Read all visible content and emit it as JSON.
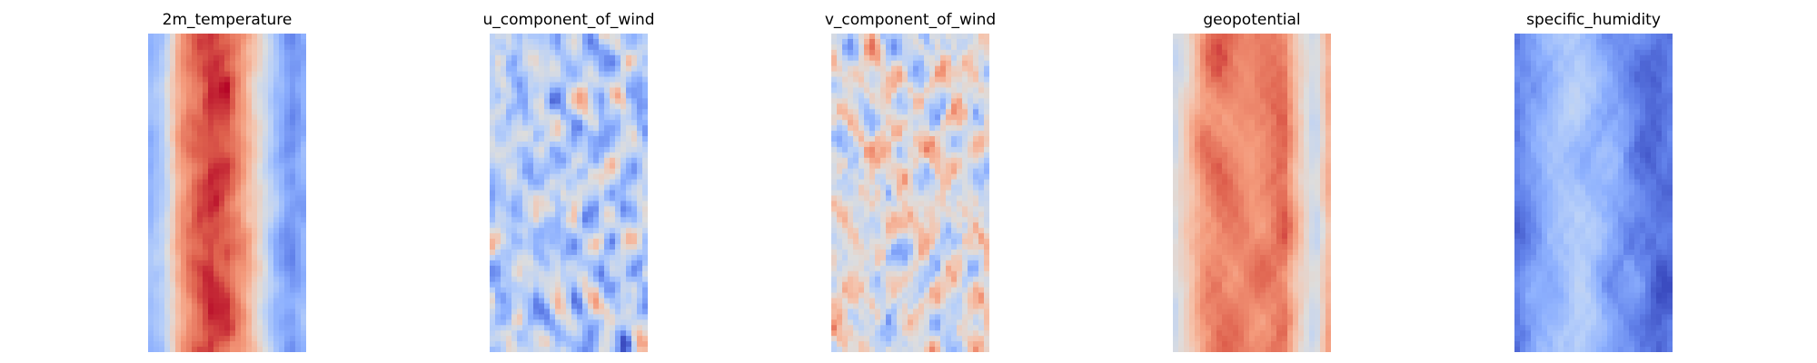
{
  "figure": {
    "colormap": "coolwarm",
    "axes": "off"
  },
  "chart_data": [
    {
      "type": "heatmap",
      "title": "2m_temperature",
      "colormap": "coolwarm",
      "grid_cols": 29,
      "grid_rows": 59,
      "pattern": "central warm band, cool edges strongest on right side",
      "value_range": [
        -1,
        1
      ],
      "profile": [
        -0.45,
        -0.25,
        0.45,
        0.7,
        0.85,
        0.78,
        0.5,
        0.1,
        -0.35,
        -0.65,
        -0.45
      ]
    },
    {
      "type": "heatmap",
      "title": "u_component_of_wind",
      "colormap": "coolwarm",
      "grid_cols": 29,
      "grid_rows": 59,
      "pattern": "mostly cool with scattered warm streaks, strong cool right edge",
      "value_range": [
        -1,
        1
      ],
      "bias": -0.25
    },
    {
      "type": "heatmap",
      "title": "v_component_of_wind",
      "colormap": "coolwarm",
      "grid_cols": 29,
      "grid_rows": 59,
      "pattern": "near-neutral field with small warm and cool eddies",
      "value_range": [
        -1,
        1
      ],
      "bias": 0.0
    },
    {
      "type": "heatmap",
      "title": "geopotential",
      "colormap": "coolwarm",
      "grid_cols": 29,
      "grid_rows": 59,
      "pattern": "warm central column, cooler patchy edges",
      "value_range": [
        -1,
        1
      ],
      "profile": [
        -0.1,
        0.2,
        0.55,
        0.65,
        0.6,
        0.55,
        0.6,
        0.7,
        0.2,
        -0.15,
        0.45
      ]
    },
    {
      "type": "heatmap",
      "title": "specific_humidity",
      "colormap": "coolwarm",
      "grid_cols": 29,
      "grid_rows": 59,
      "pattern": "cool field with a narrow warm filament through the center",
      "value_range": [
        -1,
        1
      ],
      "profile": [
        -0.8,
        -0.6,
        -0.45,
        -0.35,
        -0.3,
        -0.4,
        -0.55,
        -0.65,
        -0.75,
        -0.85,
        -0.8
      ]
    }
  ]
}
